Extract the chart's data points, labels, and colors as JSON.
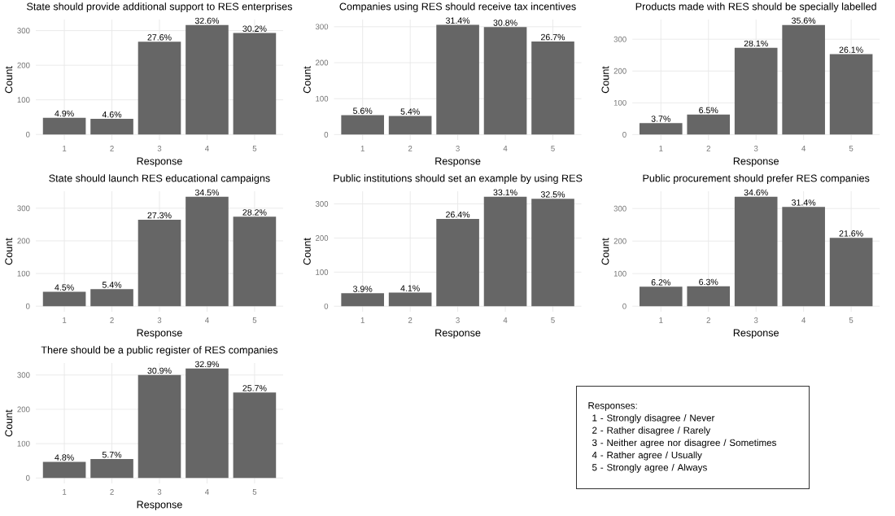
{
  "chart_data": [
    {
      "type": "bar",
      "title": "State should provide additional support to RES enterprises",
      "xlabel": "Response",
      "ylabel": "Count",
      "categories": [
        "1",
        "2",
        "3",
        "4",
        "5"
      ],
      "values": [
        48,
        45,
        268,
        316,
        293
      ],
      "color": "#666666",
      "ylim": [
        -16,
        332
      ],
      "yticks": [
        0,
        100,
        200,
        300
      ],
      "grid": true,
      "annotations": [
        {
          "text": "4.9%",
          "x": "1",
          "y": 48
        },
        {
          "text": "4.6%",
          "x": "2",
          "y": 45
        },
        {
          "text": "27.6%",
          "x": "3",
          "y": 268
        },
        {
          "text": "32.6%",
          "x": "4",
          "y": 316
        },
        {
          "text": "30.2%",
          "x": "5",
          "y": 293
        }
      ]
    },
    {
      "type": "bar",
      "title": "Companies using RES should receive tax incentives",
      "xlabel": "Response",
      "ylabel": "Count",
      "categories": [
        "1",
        "2",
        "3",
        "4",
        "5"
      ],
      "values": [
        54,
        52,
        305,
        299,
        259
      ],
      "color": "#666666",
      "ylim": [
        -15,
        320
      ],
      "yticks": [
        0,
        100,
        200,
        300
      ],
      "grid": true,
      "annotations": [
        {
          "text": "5.6%",
          "x": "1",
          "y": 54
        },
        {
          "text": "5.4%",
          "x": "2",
          "y": 52
        },
        {
          "text": "31.4%",
          "x": "3",
          "y": 305
        },
        {
          "text": "30.8%",
          "x": "4",
          "y": 299
        },
        {
          "text": "26.7%",
          "x": "5",
          "y": 259
        }
      ]
    },
    {
      "type": "bar",
      "title": "Products made with RES should be specially labelled",
      "xlabel": "Response",
      "ylabel": "Count",
      "categories": [
        "1",
        "2",
        "3",
        "4",
        "5"
      ],
      "values": [
        36,
        63,
        273,
        345,
        253
      ],
      "color": "#666666",
      "ylim": [
        -17,
        362
      ],
      "yticks": [
        0,
        100,
        200,
        300
      ],
      "grid": true,
      "annotations": [
        {
          "text": "3.7%",
          "x": "1",
          "y": 36
        },
        {
          "text": "6.5%",
          "x": "2",
          "y": 63
        },
        {
          "text": "28.1%",
          "x": "3",
          "y": 273
        },
        {
          "text": "35.6%",
          "x": "4",
          "y": 345
        },
        {
          "text": "26.1%",
          "x": "5",
          "y": 253
        }
      ]
    },
    {
      "type": "bar",
      "title": "State should launch RES educational campaigns",
      "xlabel": "Response",
      "ylabel": "Count",
      "categories": [
        "1",
        "2",
        "3",
        "4",
        "5"
      ],
      "values": [
        44,
        52,
        265,
        335,
        274
      ],
      "color": "#666666",
      "ylim": [
        -17,
        352
      ],
      "yticks": [
        0,
        100,
        200,
        300
      ],
      "grid": true,
      "annotations": [
        {
          "text": "4.5%",
          "x": "1",
          "y": 44
        },
        {
          "text": "5.4%",
          "x": "2",
          "y": 52
        },
        {
          "text": "27.3%",
          "x": "3",
          "y": 265
        },
        {
          "text": "34.5%",
          "x": "4",
          "y": 335
        },
        {
          "text": "28.2%",
          "x": "5",
          "y": 274
        }
      ]
    },
    {
      "type": "bar",
      "title": "Public institutions should set an example by using RES",
      "xlabel": "Response",
      "ylabel": "Count",
      "categories": [
        "1",
        "2",
        "3",
        "4",
        "5"
      ],
      "values": [
        38,
        40,
        256,
        321,
        315
      ],
      "color": "#666666",
      "ylim": [
        -16,
        337
      ],
      "yticks": [
        0,
        100,
        200,
        300
      ],
      "grid": true,
      "annotations": [
        {
          "text": "3.9%",
          "x": "1",
          "y": 38
        },
        {
          "text": "4.1%",
          "x": "2",
          "y": 40
        },
        {
          "text": "26.4%",
          "x": "3",
          "y": 256
        },
        {
          "text": "33.1%",
          "x": "4",
          "y": 321
        },
        {
          "text": "32.5%",
          "x": "5",
          "y": 315
        }
      ]
    },
    {
      "type": "bar",
      "title": "Public procurement should prefer RES companies",
      "xlabel": "Response",
      "ylabel": "Count",
      "categories": [
        "1",
        "2",
        "3",
        "4",
        "5"
      ],
      "values": [
        60,
        61,
        336,
        305,
        210
      ],
      "color": "#666666",
      "ylim": [
        -17,
        353
      ],
      "yticks": [
        0,
        100,
        200,
        300
      ],
      "grid": true,
      "annotations": [
        {
          "text": "6.2%",
          "x": "1",
          "y": 60
        },
        {
          "text": "6.3%",
          "x": "2",
          "y": 61
        },
        {
          "text": "34.6%",
          "x": "3",
          "y": 336
        },
        {
          "text": "31.4%",
          "x": "4",
          "y": 305
        },
        {
          "text": "21.6%",
          "x": "5",
          "y": 210
        }
      ]
    },
    {
      "type": "bar",
      "title": "There should be a public register of RES companies",
      "xlabel": "Response",
      "ylabel": "Count",
      "categories": [
        "1",
        "2",
        "3",
        "4",
        "5"
      ],
      "values": [
        47,
        55,
        300,
        319,
        249
      ],
      "color": "#666666",
      "ylim": [
        -16,
        335
      ],
      "yticks": [
        0,
        100,
        200,
        300
      ],
      "grid": true,
      "annotations": [
        {
          "text": "4.8%",
          "x": "1",
          "y": 47
        },
        {
          "text": "5.7%",
          "x": "2",
          "y": 55
        },
        {
          "text": "30.9%",
          "x": "3",
          "y": 300
        },
        {
          "text": "32.9%",
          "x": "4",
          "y": 319
        },
        {
          "text": "25.7%",
          "x": "5",
          "y": 249
        }
      ]
    },
    {
      "type": "other",
      "title": "Responses:",
      "annotations": [
        "1 - Strongly disagree / Never",
        "2 - Rather disagree / Rarely",
        "3 - Neither agree nor disagree / Sometimes",
        "4 - Rather agree / Usually",
        "5 - Strongly agree / Always"
      ]
    }
  ]
}
